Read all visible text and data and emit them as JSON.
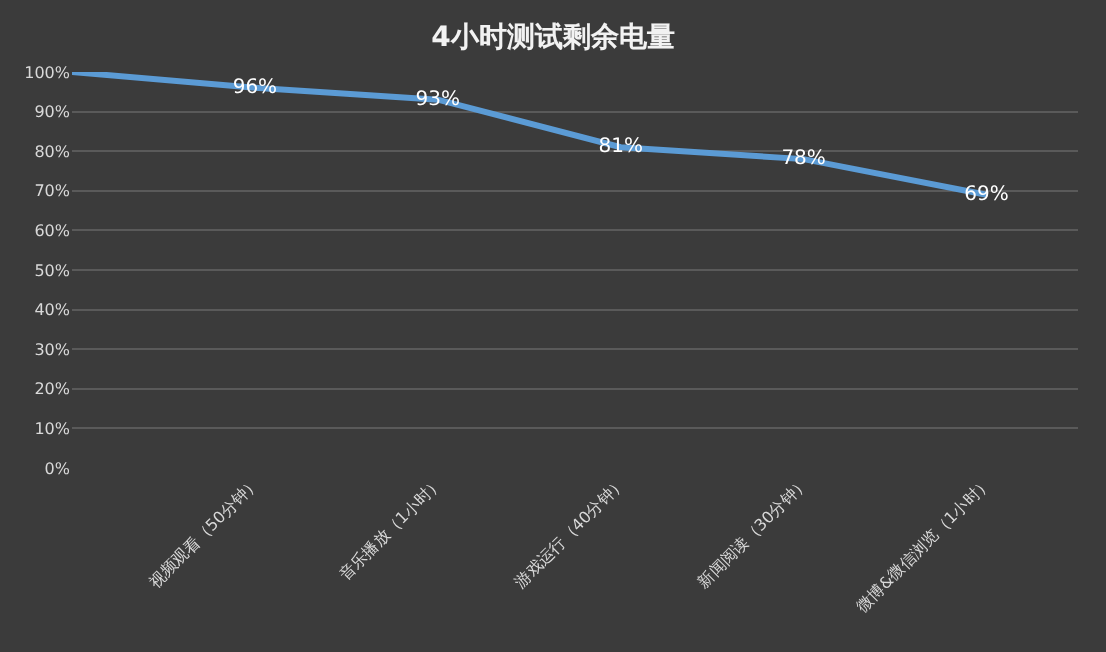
{
  "chart_data": {
    "type": "line",
    "title": "4小时测试剩余电量",
    "categories": [
      null,
      "视频观看（50分钟）",
      "音乐播放（1小时）",
      "游戏运行（40分钟）",
      "新闻阅读（30分钟）",
      "微博&微信浏览（1小时）"
    ],
    "series": [
      {
        "color": "#5b9bd5",
        "values": [
          100,
          96,
          93,
          81,
          78,
          69
        ],
        "value_labels": [
          null,
          "96%",
          "93%",
          "81%",
          "78%",
          "69%"
        ]
      }
    ],
    "ylim": [
      0,
      100
    ],
    "yticks": [
      {
        "value": 0,
        "label": "0%"
      },
      {
        "value": 10,
        "label": "10%"
      },
      {
        "value": 20,
        "label": "20%"
      },
      {
        "value": 30,
        "label": "30%"
      },
      {
        "value": 40,
        "label": "40%"
      },
      {
        "value": 50,
        "label": "50%"
      },
      {
        "value": 60,
        "label": "60%"
      },
      {
        "value": 70,
        "label": "70%"
      },
      {
        "value": 80,
        "label": "80%"
      },
      {
        "value": 90,
        "label": "90%"
      },
      {
        "value": 100,
        "label": "100%"
      }
    ],
    "grid": "y",
    "marker": "none",
    "line_style": "solid"
  }
}
